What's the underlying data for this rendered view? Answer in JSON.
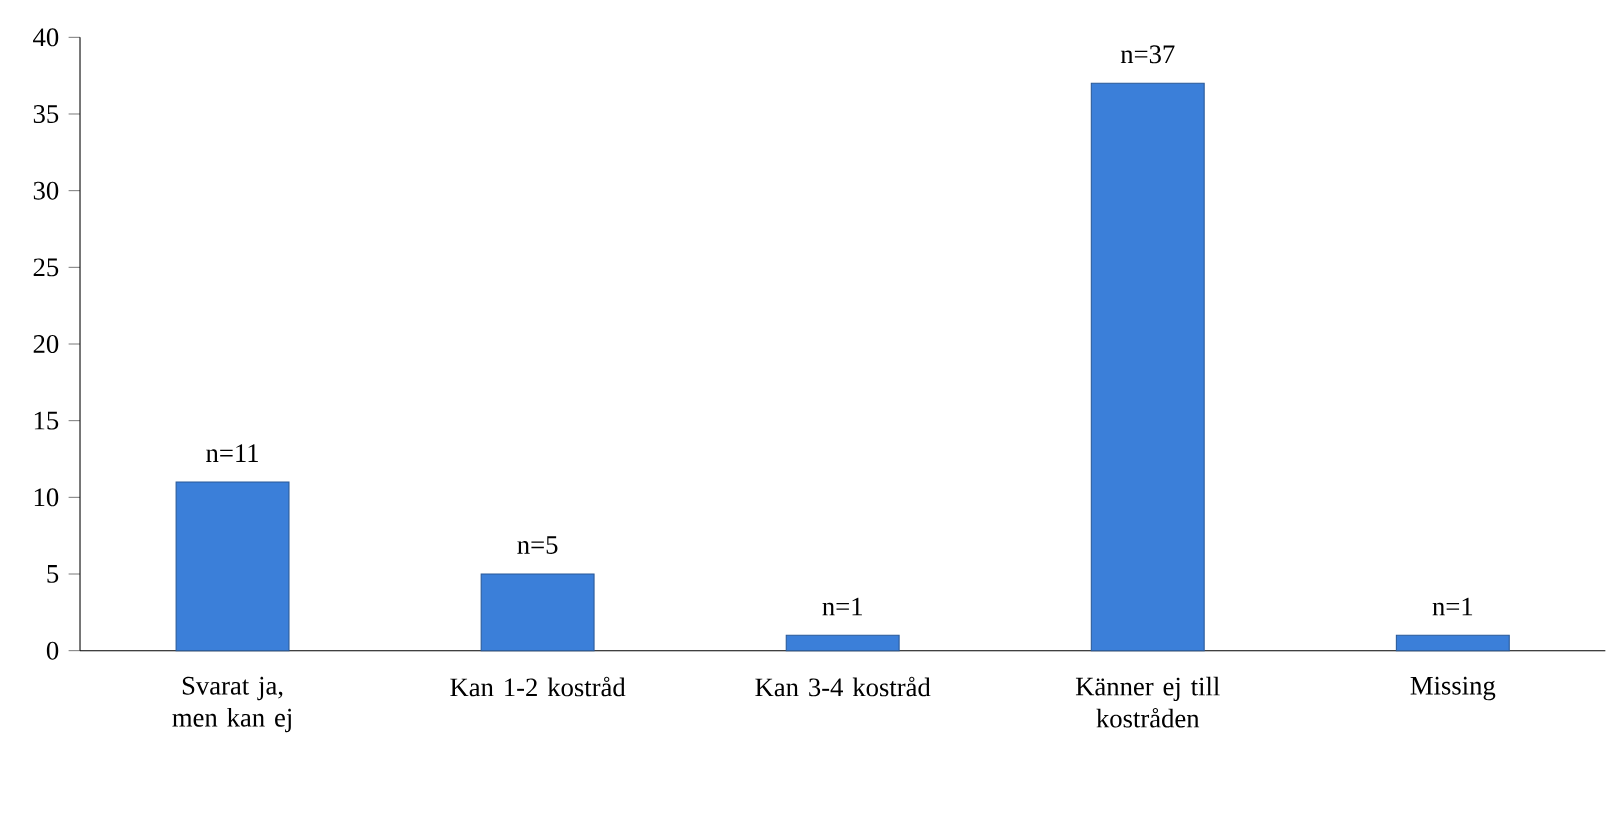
{
  "chart_data": {
    "type": "bar",
    "categories": [
      "Svarat ja, men kan ej",
      "Kan 1-2 kostråd",
      "Kan 3-4 kostråd",
      "Känner ej till kostråden",
      "Missing"
    ],
    "values": [
      11,
      5,
      1,
      37,
      1
    ],
    "value_labels": [
      "n=11",
      "n=5",
      "n=1",
      "n=37",
      "n=1"
    ],
    "color": "#3b7fd9",
    "ylim": [
      0,
      40
    ],
    "yticks": [
      0,
      5,
      10,
      15,
      20,
      25,
      30,
      35,
      40
    ],
    "grid": false
  }
}
